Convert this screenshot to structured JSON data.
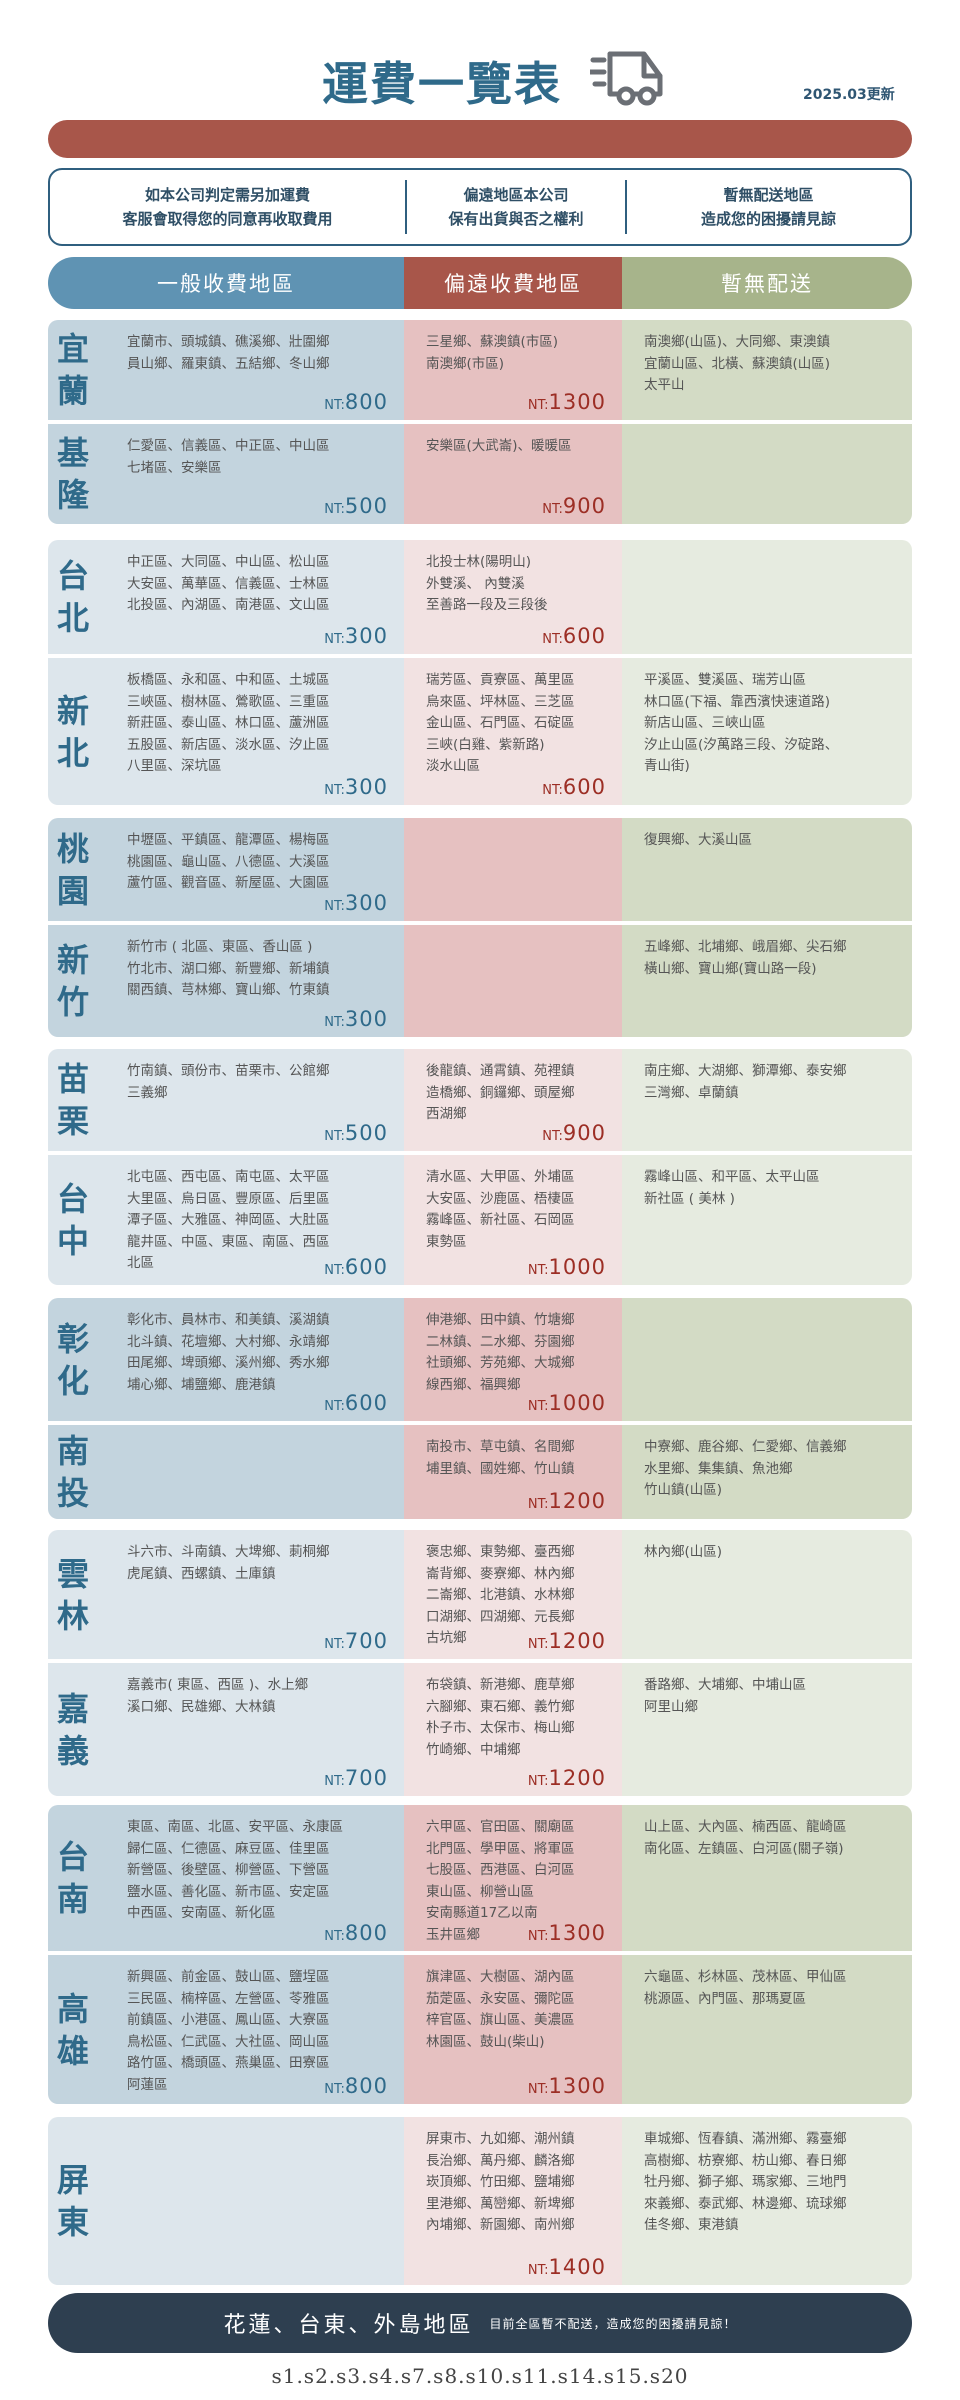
{
  "header": {
    "title": "運費一覽表",
    "updated": "2025.03更新",
    "icon": "truck-icon"
  },
  "notice": {
    "col1": [
      "如本公司判定需另加運費",
      "客服會取得您的同意再收取費用"
    ],
    "col2": [
      "偏遠地區本公司",
      "保有出貨與否之權利"
    ],
    "col3": [
      "暫無配送地區",
      "造成您的困擾請見諒"
    ]
  },
  "columns": {
    "general": "一般收費地區",
    "remote": "偏遠收費地區",
    "none": "暫無配送"
  },
  "colors": {
    "primary": "#2f6a8a",
    "general": "#5f93b3",
    "remote": "#a8564a",
    "none": "#a7b48b",
    "footer": "#2e3f50"
  },
  "price_prefix": "NT:",
  "groups": [
    {
      "regions": [
        {
          "name": "宜蘭",
          "general": {
            "lines": [
              "宜蘭市、頭城鎮、礁溪鄉、壯圍鄉",
              "員山鄉、羅東鎮、五結鄉、冬山鄉"
            ],
            "price": "800"
          },
          "remote": {
            "lines": [
              "三星鄉、蘇澳鎮(市區)",
              "南澳鄉(市區)"
            ],
            "price": "1300"
          },
          "none": {
            "lines": [
              "南澳鄉(山區)、大同鄉、東澳鎮",
              "宜蘭山區、北橫、蘇澳鎮(山區)",
              "太平山"
            ]
          }
        },
        {
          "name": "基隆",
          "general": {
            "lines": [
              "仁愛區、信義區、中正區、中山區",
              "七堵區、安樂區"
            ],
            "price": "500"
          },
          "remote": {
            "lines": [
              "安樂區(大武崙)、暖暖區"
            ],
            "price": "900"
          },
          "none": {
            "lines": []
          }
        }
      ]
    },
    {
      "regions": [
        {
          "name": "台北",
          "general": {
            "lines": [
              "中正區、大同區、中山區、松山區",
              "大安區、萬華區、信義區、士林區",
              "北投區、內湖區、南港區、文山區"
            ],
            "price": "300"
          },
          "remote": {
            "lines": [
              "北投士林(陽明山)",
              "外雙溪、 內雙溪",
              "至善路一段及三段後"
            ],
            "price": "600"
          },
          "none": {
            "lines": []
          }
        },
        {
          "name": "新北",
          "general": {
            "lines": [
              "板橋區、永和區、中和區、土城區",
              "三峽區、樹林區、鶯歌區、三重區",
              "新莊區、泰山區、林口區、蘆洲區",
              "五股區、新店區、淡水區、汐止區",
              "八里區、深坑區"
            ],
            "price": "300"
          },
          "remote": {
            "lines": [
              "瑞芳區、貢寮區、萬里區",
              "烏來區、坪林區、三芝區",
              "金山區、石門區、石碇區",
              "三峽(白雞、紫新路)",
              "淡水山區"
            ],
            "price": "600"
          },
          "none": {
            "lines": [
              "平溪區、雙溪區、瑞芳山區",
              "林口區(下福、靠西濱快速道路)",
              "新店山區、三峽山區",
              "汐止山區(汐萬路三段、汐碇路、",
              "青山街)"
            ]
          }
        }
      ]
    },
    {
      "regions": [
        {
          "name": "桃園",
          "general": {
            "lines": [
              "中壢區、平鎮區、龍潭區、楊梅區",
              "桃園區、龜山區、八德區、大溪區",
              "蘆竹區、觀音區、新屋區、大園區"
            ],
            "price": "300"
          },
          "remote": {
            "lines": [],
            "price": ""
          },
          "none": {
            "lines": [
              "復興鄉、大溪山區"
            ]
          }
        },
        {
          "name": "新竹",
          "general": {
            "lines": [
              "新竹市 ( 北區、東區、香山區 )",
              "竹北市、湖口鄉、新豐鄉、新埔鎮",
              "關西鎮、芎林鄉、寶山鄉、竹東鎮"
            ],
            "price": "300"
          },
          "remote": {
            "lines": [],
            "price": ""
          },
          "none": {
            "lines": [
              "五峰鄉、北埔鄉、峨眉鄉、尖石鄉",
              "橫山鄉、寶山鄉(寶山路一段)"
            ]
          }
        }
      ]
    },
    {
      "regions": [
        {
          "name": "苗栗",
          "general": {
            "lines": [
              "竹南鎮、頭份市、苗栗市、公館鄉",
              "三義鄉"
            ],
            "price": "500"
          },
          "remote": {
            "lines": [
              "後龍鎮、通霄鎮、苑裡鎮",
              "造橋鄉、銅鑼鄉、頭屋鄉",
              "西湖鄉"
            ],
            "price": "900"
          },
          "none": {
            "lines": [
              "南庄鄉、大湖鄉、獅潭鄉、泰安鄉",
              "三灣鄉、卓蘭鎮"
            ]
          }
        },
        {
          "name": "台中",
          "general": {
            "lines": [
              "北屯區、西屯區、南屯區、太平區",
              "大里區、烏日區、豐原區、后里區",
              "潭子區、大雅區、神岡區、大肚區",
              "龍井區、中區、東區、南區、西區",
              "北區"
            ],
            "price": "600"
          },
          "remote": {
            "lines": [
              "清水區、大甲區、外埔區",
              "大安區、沙鹿區、梧棲區",
              "霧峰區、新社區、石岡區",
              "東勢區"
            ],
            "price": "1000"
          },
          "none": {
            "lines": [
              "霧峰山區、和平區、太平山區",
              "新社區 ( 美林 )"
            ]
          }
        }
      ]
    },
    {
      "regions": [
        {
          "name": "彰化",
          "general": {
            "lines": [
              "彰化市、員林市、和美鎮、溪湖鎮",
              "北斗鎮、花壇鄉、大村鄉、永靖鄉",
              "田尾鄉、埤頭鄉、溪州鄉、秀水鄉",
              "埔心鄉、埔鹽鄉、鹿港鎮"
            ],
            "price": "600"
          },
          "remote": {
            "lines": [
              "伸港鄉、田中鎮、竹塘鄉",
              "二林鎮、二水鄉、芬園鄉",
              "社頭鄉、芳苑鄉、大城鄉",
              "線西鄉、福興鄉"
            ],
            "price": "1000"
          },
          "none": {
            "lines": []
          }
        },
        {
          "name": "南投",
          "general": {
            "lines": [],
            "price": ""
          },
          "remote": {
            "lines": [
              "南投市、草屯鎮、名間鄉",
              "埔里鎮、國姓鄉、竹山鎮"
            ],
            "price": "1200"
          },
          "none": {
            "lines": [
              "中寮鄉、鹿谷鄉、仁愛鄉、信義鄉",
              "水里鄉、集集鎮、魚池鄉",
              "竹山鎮(山區)"
            ]
          }
        }
      ]
    },
    {
      "regions": [
        {
          "name": "雲林",
          "general": {
            "lines": [
              "斗六市、斗南鎮、大埤鄉、莿桐鄉",
              "虎尾鎮、西螺鎮、土庫鎮"
            ],
            "price": "700"
          },
          "remote": {
            "lines": [
              "褒忠鄉、東勢鄉、臺西鄉",
              "崙背鄉、麥寮鄉、林內鄉",
              "二崙鄉、北港鎮、水林鄉",
              "口湖鄉、四湖鄉、元長鄉",
              "古坑鄉"
            ],
            "price": "1200"
          },
          "none": {
            "lines": [
              "林內鄉(山區)"
            ]
          }
        },
        {
          "name": "嘉義",
          "general": {
            "lines": [
              "嘉義市( 東區、西區 )、水上鄉",
              "溪口鄉、民雄鄉、大林鎮"
            ],
            "price": "700"
          },
          "remote": {
            "lines": [
              "布袋鎮、新港鄉、鹿草鄉",
              "六腳鄉、東石鄉、義竹鄉",
              "朴子市、太保市、梅山鄉",
              "竹崎鄉、中埔鄉"
            ],
            "price": "1200"
          },
          "none": {
            "lines": [
              "番路鄉、大埔鄉、中埔山區",
              "阿里山鄉"
            ]
          }
        }
      ]
    },
    {
      "regions": [
        {
          "name": "台南",
          "general": {
            "lines": [
              "東區、南區、北區、安平區、永康區",
              "歸仁區、仁德區、麻豆區、佳里區",
              "新營區、後壁區、柳營區、下營區",
              "鹽水區、善化區、新市區、安定區",
              "中西區、安南區、新化區"
            ],
            "price": "800"
          },
          "remote": {
            "lines": [
              "六甲區、官田區、關廟區",
              "北門區、學甲區、將軍區",
              "七股區、西港區、白河區",
              "東山區、柳營山區",
              "安南縣道17乙以南",
              "玉井區鄉"
            ],
            "price": "1300"
          },
          "none": {
            "lines": [
              "山上區、大內區、楠西區、龍崎區",
              "南化區、左鎮區、白河區(關子嶺)"
            ]
          }
        },
        {
          "name": "高雄",
          "general": {
            "lines": [
              "新興區、前金區、鼓山區、鹽埕區",
              "三民區、楠梓區、左營區、苓雅區",
              "前鎮區、小港區、鳳山區、大寮區",
              "鳥松區、仁武區、大社區、岡山區",
              "路竹區、橋頭區、燕巢區、田寮區",
              "阿蓮區"
            ],
            "price": "800"
          },
          "remote": {
            "lines": [
              "旗津區、大樹區、湖內區",
              "茄萣區、永安區、彌陀區",
              "梓官區、旗山區、美濃區",
              "林園區、鼓山(柴山)"
            ],
            "price": "1300"
          },
          "none": {
            "lines": [
              "六龜區、杉林區、茂林區、甲仙區",
              "桃源區、內門區、那瑪夏區"
            ]
          }
        }
      ]
    },
    {
      "regions": [
        {
          "name": "屏東",
          "general": {
            "lines": [],
            "price": ""
          },
          "remote": {
            "lines": [
              "屏東市、九如鄉、潮州鎮",
              "長治鄉、萬丹鄉、麟洛鄉",
              "崁頂鄉、竹田鄉、鹽埔鄉",
              "里港鄉、萬巒鄉、新埤鄉",
              "內埔鄉、新園鄉、南州鄉"
            ],
            "price": "1400"
          },
          "none": {
            "lines": [
              "車城鄉、恆春鎮、滿洲鄉、霧臺鄉",
              "高樹鄉、枋寮鄉、枋山鄉、春日鄉",
              "牡丹鄉、獅子鄉、瑪家鄉、三地門",
              "來義鄉、泰武鄉、林邊鄉、琉球鄉",
              "佳冬鄉、東港鎮"
            ]
          }
        }
      ]
    }
  ],
  "footer": {
    "main": "花蓮、台東、外島地區",
    "note": "目前全區暫不配送，造成您的困擾請見諒！"
  },
  "codes": "s1.s2.s3.s4.s7.s8.s10.s11.s14.s15.s20"
}
